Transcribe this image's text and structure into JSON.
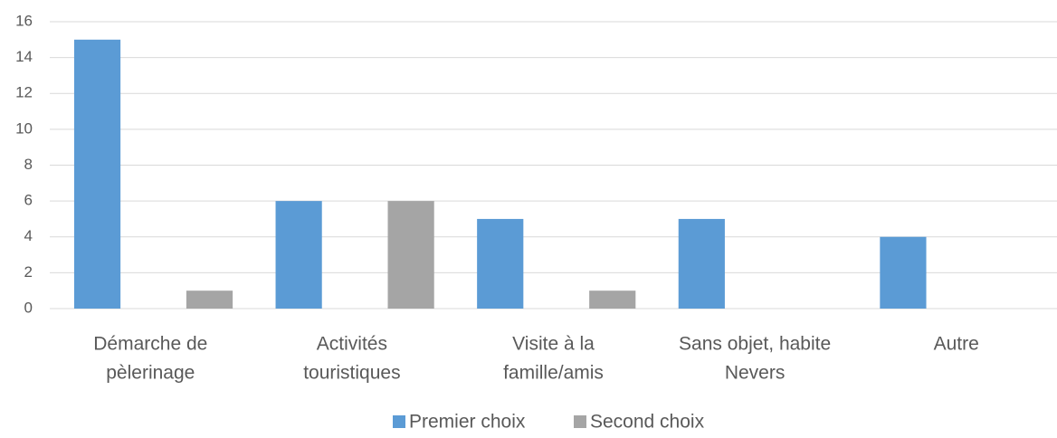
{
  "chart_data": {
    "type": "bar",
    "categories": [
      [
        "Démarche de",
        "pèlerinage"
      ],
      [
        "Activités",
        "touristiques"
      ],
      [
        "Visite à la",
        "famille/amis"
      ],
      [
        "Sans objet, habite",
        "Nevers"
      ],
      [
        "Autre"
      ]
    ],
    "series": [
      {
        "name": "Premier choix",
        "color": "#5b9bd5",
        "values": [
          15,
          6,
          5,
          5,
          4
        ]
      },
      {
        "name": "Second choix",
        "color": "#a5a5a5",
        "values": [
          1,
          6,
          1,
          0,
          0
        ]
      }
    ],
    "ylim": [
      0,
      16
    ],
    "yticks": [
      0,
      2,
      4,
      6,
      8,
      10,
      12,
      14,
      16
    ],
    "grid": true,
    "legend": "bottom"
  }
}
